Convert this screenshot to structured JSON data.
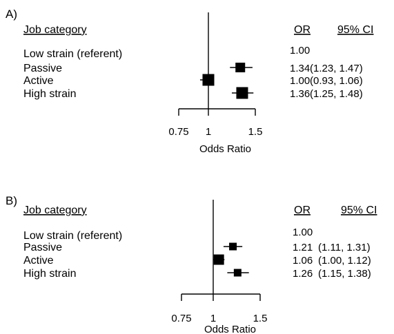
{
  "chart_data": [
    {
      "type": "forest",
      "panel_label": "A)",
      "column_headers": {
        "category": "Job category",
        "or": "OR",
        "ci": "95% CI"
      },
      "xlabel": "Odds Ratio",
      "xticks": [
        "0.75",
        "1",
        "1.5"
      ],
      "reference_line": 1,
      "rows": [
        {
          "label": "Low strain (referent)",
          "or_text": "1.00",
          "ci_text": "",
          "or": 1.0,
          "ci": null,
          "plotted": false
        },
        {
          "label": "Passive",
          "or_text": "1.34",
          "ci_text": "(1.23, 1.47)",
          "or": 1.34,
          "ci": [
            1.23,
            1.47
          ],
          "plotted": true
        },
        {
          "label": "Active",
          "or_text": "1.00",
          "ci_text": "(0.93, 1.06)",
          "or": 1.0,
          "ci": [
            0.93,
            1.06
          ],
          "plotted": true
        },
        {
          "label": "High strain",
          "or_text": "1.36",
          "ci_text": "(1.25, 1.48)",
          "or": 1.36,
          "ci": [
            1.25,
            1.48
          ],
          "plotted": true
        }
      ]
    },
    {
      "type": "forest",
      "panel_label": "B)",
      "column_headers": {
        "category": "Job category",
        "or": "OR",
        "ci": "95% CI"
      },
      "xlabel": "Odds Ratio",
      "xticks": [
        "0.75",
        "1",
        "1.5"
      ],
      "reference_line": 1,
      "rows": [
        {
          "label": "Low strain (referent)",
          "or_text": "1.00",
          "ci_text": "",
          "or": 1.0,
          "ci": null,
          "plotted": false
        },
        {
          "label": "Passive",
          "or_text": "1.21",
          "ci_text": "(1.11, 1.31)",
          "or": 1.21,
          "ci": [
            1.11,
            1.31
          ],
          "plotted": true
        },
        {
          "label": "Active",
          "or_text": "1.06",
          "ci_text": "(1.00, 1.12)",
          "or": 1.06,
          "ci": [
            1.0,
            1.12
          ],
          "plotted": true
        },
        {
          "label": "High strain",
          "or_text": "1.26",
          "ci_text": "(1.15, 1.38)",
          "or": 1.26,
          "ci": [
            1.15,
            1.38
          ],
          "plotted": true
        }
      ]
    }
  ]
}
